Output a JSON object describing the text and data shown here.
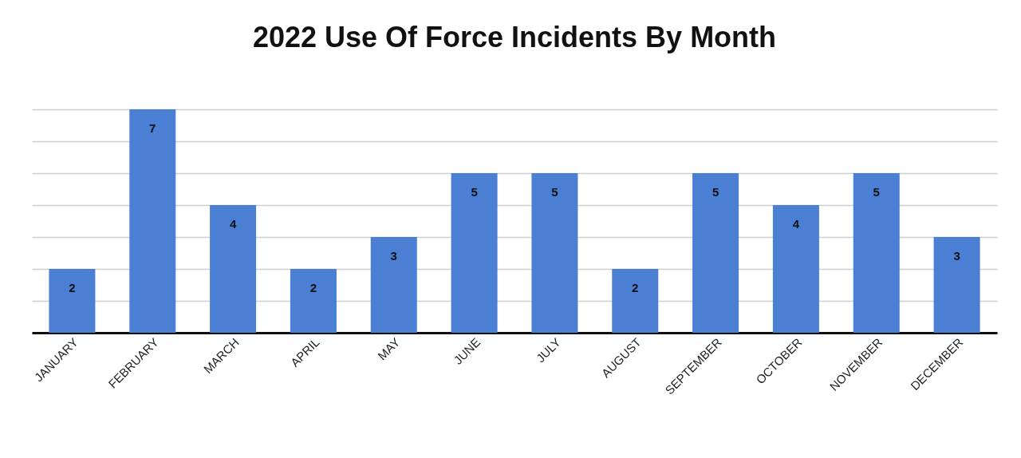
{
  "chart_data": {
    "type": "bar",
    "title": "2022 Use Of Force Incidents By Month",
    "categories": [
      "JANUARY",
      "FEBRUARY",
      "MARCH",
      "APRIL",
      "MAY",
      "JUNE",
      "JULY",
      "AUGUST",
      "SEPTEMBER",
      "OCTOBER",
      "NOVEMBER",
      "DECEMBER"
    ],
    "values": [
      2,
      7,
      4,
      2,
      3,
      5,
      5,
      2,
      5,
      4,
      5,
      3
    ],
    "color": "#4a7fd4",
    "ylim": [
      0,
      7
    ],
    "yticks": [
      {
        "value": 0,
        "label": null
      },
      {
        "value": 1,
        "label": null
      },
      {
        "value": 2,
        "label": null
      },
      {
        "value": 3,
        "label": null
      },
      {
        "value": 4,
        "label": null
      },
      {
        "value": 5,
        "label": null
      },
      {
        "value": 6,
        "label": null
      },
      {
        "value": 7,
        "label": null
      }
    ],
    "grid": "y",
    "tick_labels": "x",
    "data_labels": true
  }
}
